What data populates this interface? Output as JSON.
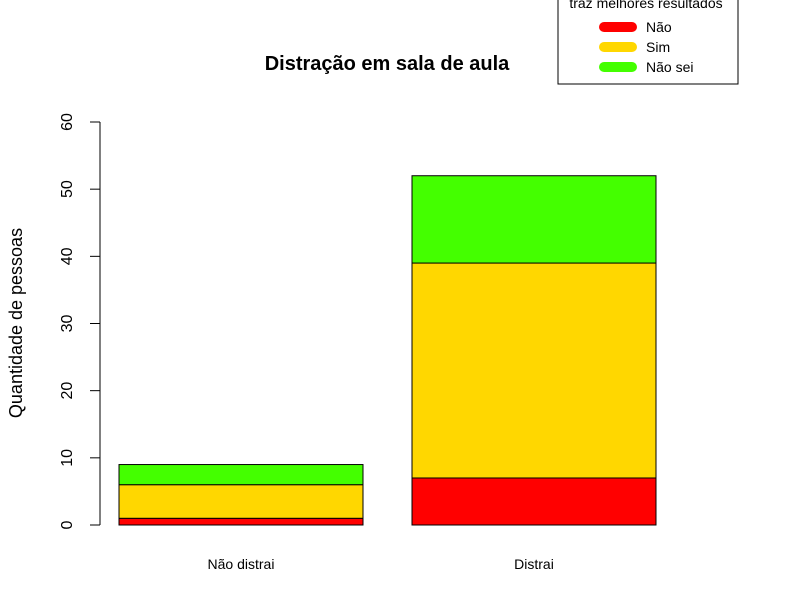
{
  "chart_data": {
    "type": "bar",
    "stacked": true,
    "title": "Distração em sala de aula",
    "ylabel": "Quantidade de pessoas",
    "xlabel": "",
    "ylim": [
      0,
      60
    ],
    "yticks": [
      0,
      10,
      20,
      30,
      40,
      50,
      60
    ],
    "categories": [
      "Não distrai",
      "Distrai"
    ],
    "series": [
      {
        "name": "Não",
        "color": "#ff0000",
        "values": [
          1,
          7
        ]
      },
      {
        "name": "Sim",
        "color": "#ffd700",
        "values": [
          5,
          32
        ]
      },
      {
        "name": "Não sei",
        "color": "#44ff00",
        "values": [
          3,
          13
        ]
      }
    ],
    "legend": {
      "title": "traz melhores resultados",
      "placement": "top-right"
    }
  }
}
